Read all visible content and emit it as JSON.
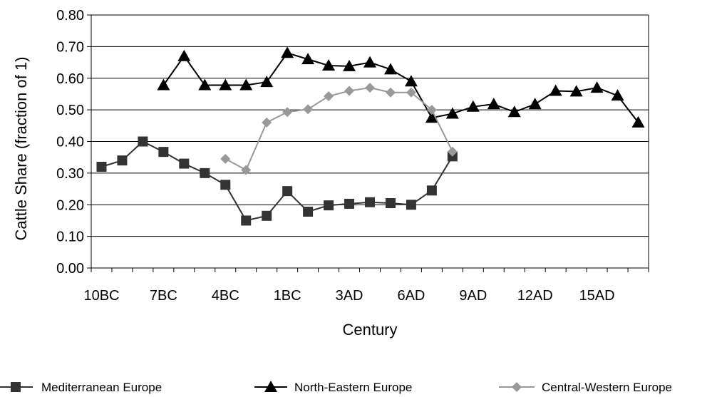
{
  "chart_data": {
    "type": "line",
    "title": "",
    "xlabel": "Century",
    "ylabel": "Cattle Share (fraction of 1)",
    "ylim": [
      0,
      0.8
    ],
    "yticks": [
      "0.00",
      "0.10",
      "0.20",
      "0.30",
      "0.40",
      "0.50",
      "0.60",
      "0.70",
      "0.80"
    ],
    "x": [
      "10BC",
      "9BC",
      "8BC",
      "7BC",
      "6BC",
      "5BC",
      "4BC",
      "3BC",
      "2BC",
      "1BC",
      "1AD",
      "2AD",
      "3AD",
      "4AD",
      "5AD",
      "6AD",
      "7AD",
      "8AD",
      "9AD",
      "10AD",
      "11AD",
      "12AD",
      "13AD",
      "14AD",
      "15AD",
      "16AD",
      "17AD"
    ],
    "xtick_labels_shown": [
      "10BC",
      "7BC",
      "4BC",
      "1BC",
      "3AD",
      "6AD",
      "9AD",
      "12AD",
      "15AD"
    ],
    "legend_position": "bottom",
    "grid": true,
    "series": [
      {
        "name": "Mediterranean Europe",
        "color": "#333333",
        "marker": "square",
        "values": [
          0.32,
          0.34,
          0.4,
          0.367,
          0.33,
          0.3,
          0.263,
          0.15,
          0.165,
          0.243,
          0.178,
          0.198,
          0.203,
          0.208,
          0.205,
          0.2,
          0.245,
          0.353,
          null,
          null,
          null,
          null,
          null,
          null,
          null,
          null,
          null
        ]
      },
      {
        "name": "North-Eastern Europe",
        "color": "#000000",
        "marker": "triangle",
        "values": [
          null,
          null,
          null,
          0.578,
          0.67,
          0.578,
          0.578,
          0.578,
          0.588,
          0.68,
          0.66,
          0.64,
          0.638,
          0.65,
          0.628,
          0.59,
          0.475,
          0.488,
          0.51,
          0.518,
          0.493,
          0.518,
          0.56,
          0.558,
          0.57,
          0.545,
          0.46
        ]
      },
      {
        "name": "Central-Western Europe",
        "color": "#999999",
        "marker": "diamond",
        "values": [
          null,
          null,
          null,
          null,
          null,
          null,
          0.345,
          0.31,
          0.46,
          0.493,
          0.502,
          0.543,
          0.56,
          0.57,
          0.555,
          0.555,
          0.5,
          0.368,
          null,
          null,
          null,
          null,
          null,
          null,
          null,
          null,
          null
        ]
      }
    ]
  }
}
